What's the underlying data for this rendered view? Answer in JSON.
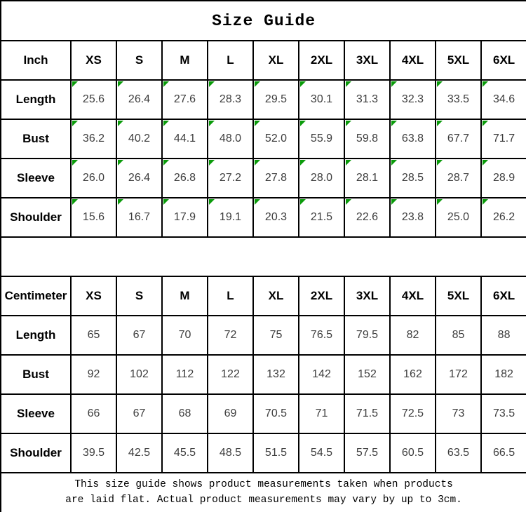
{
  "title": "Size Guide",
  "sizes": [
    "XS",
    "S",
    "M",
    "L",
    "XL",
    "2XL",
    "3XL",
    "4XL",
    "5XL",
    "6XL"
  ],
  "chart_data": [
    {
      "type": "table",
      "title": "Size Guide (Inch)",
      "unit_label": "Inch",
      "columns": [
        "XS",
        "S",
        "M",
        "L",
        "XL",
        "2XL",
        "3XL",
        "4XL",
        "5XL",
        "6XL"
      ],
      "rows": [
        {
          "label": "Length",
          "values": [
            "25.6",
            "26.4",
            "27.6",
            "28.3",
            "29.5",
            "30.1",
            "31.3",
            "32.3",
            "33.5",
            "34.6"
          ]
        },
        {
          "label": "Bust",
          "values": [
            "36.2",
            "40.2",
            "44.1",
            "48.0",
            "52.0",
            "55.9",
            "59.8",
            "63.8",
            "67.7",
            "71.7"
          ]
        },
        {
          "label": "Sleeve",
          "values": [
            "26.0",
            "26.4",
            "26.8",
            "27.2",
            "27.8",
            "28.0",
            "28.1",
            "28.5",
            "28.7",
            "28.9"
          ]
        },
        {
          "label": "Shoulder",
          "values": [
            "15.6",
            "16.7",
            "17.9",
            "19.1",
            "20.3",
            "21.5",
            "22.6",
            "23.8",
            "25.0",
            "26.2"
          ]
        }
      ],
      "cell_marker": "green-corner-triangle"
    },
    {
      "type": "table",
      "title": "Size Guide (Centimeter)",
      "unit_label": "Centimeter",
      "columns": [
        "XS",
        "S",
        "M",
        "L",
        "XL",
        "2XL",
        "3XL",
        "4XL",
        "5XL",
        "6XL"
      ],
      "rows": [
        {
          "label": "Length",
          "values": [
            "65",
            "67",
            "70",
            "72",
            "75",
            "76.5",
            "79.5",
            "82",
            "85",
            "88"
          ]
        },
        {
          "label": "Bust",
          "values": [
            "92",
            "102",
            "112",
            "122",
            "132",
            "142",
            "152",
            "162",
            "172",
            "182"
          ]
        },
        {
          "label": "Sleeve",
          "values": [
            "66",
            "67",
            "68",
            "69",
            "70.5",
            "71",
            "71.5",
            "72.5",
            "73",
            "73.5"
          ]
        },
        {
          "label": "Shoulder",
          "values": [
            "39.5",
            "42.5",
            "45.5",
            "48.5",
            "51.5",
            "54.5",
            "57.5",
            "60.5",
            "63.5",
            "66.5"
          ]
        }
      ],
      "cell_marker": "none"
    }
  ],
  "footer": {
    "line1": "This size guide shows product measurements taken when products",
    "line2": "are laid flat. Actual product measurements may vary by up to 3cm."
  },
  "colors": {
    "border": "#000000",
    "header_text": "#000000",
    "value_text": "#3d3d3d",
    "marker_green": "#0a9b0a",
    "background": "#ffffff"
  }
}
